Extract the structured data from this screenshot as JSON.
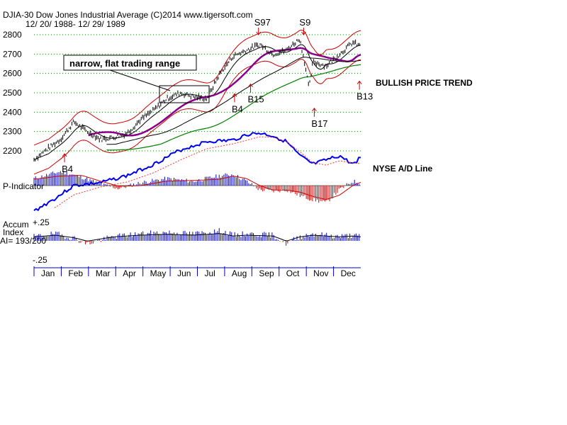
{
  "header": {
    "line1": "DJIA-30  Dow Jones Industrial Average   (C)2014 www.tigersoft.com",
    "line2": "12/ 20/ 1988- 12/ 29/ 1989"
  },
  "annotations": {
    "range_box": "narrow, flat trading range",
    "trend": "BULLISH PRICE TREND",
    "ad_line": "NYSE A/D Line",
    "p_indicator": "P-Indicator",
    "accum_1": "Accum",
    "accum_2": "Index",
    "accum_3": "AI= 193/200",
    "accum_top": "+.25",
    "accum_bottom": "-.25"
  },
  "signals": [
    {
      "label": "B4",
      "kind": "buy",
      "x_month": 1.15,
      "value": 2185
    },
    {
      "label": "B4",
      "kind": "buy",
      "x_month": 7.55,
      "value": 2495
    },
    {
      "label": "B15",
      "kind": "buy",
      "x_month": 8.15,
      "value": 2545
    },
    {
      "label": "S97",
      "kind": "sell",
      "x_month": 8.45,
      "value": 2800
    },
    {
      "label": "S9",
      "kind": "sell",
      "x_month": 10.15,
      "value": 2800
    },
    {
      "label": "B17",
      "kind": "buy",
      "x_month": 10.55,
      "value": 2420
    },
    {
      "label": "B13",
      "kind": "buy",
      "x_month": 12.25,
      "value": 2560
    }
  ],
  "colors": {
    "price_bars": "#000000",
    "band": "#cc0000",
    "ma_purple": "#8b008b",
    "ma_green": "#008000",
    "ad_line": "#0000ee",
    "ad_ma": "#ff3333",
    "hist_pos": "#0000cc",
    "hist_neg": "#cc0000",
    "gridline": "#008800"
  },
  "chart_data": {
    "type": "line",
    "title": "DJIA-30  Dow Jones Industrial Average",
    "ylim": [
      2125,
      2830
    ],
    "y_ticks": [
      2200,
      2300,
      2400,
      2500,
      2600,
      2700,
      2800
    ],
    "x_ticks": [
      "Jan",
      "Feb",
      "Mar",
      "Apr",
      "May",
      "Jun",
      "Jul",
      "Aug",
      "Sep",
      "Oct",
      "Nov",
      "Dec"
    ],
    "x_month": [
      0,
      0.5,
      1,
      1.5,
      2,
      2.5,
      3,
      3.5,
      4,
      4.5,
      5,
      5.5,
      6,
      6.5,
      7,
      7.5,
      8,
      8.5,
      9,
      9.5,
      10,
      10.2,
      10.35,
      10.5,
      11,
      11.5,
      12,
      12.3
    ],
    "series": [
      {
        "name": "DJIA",
        "values": [
          2155,
          2210,
          2260,
          2350,
          2300,
          2260,
          2270,
          2290,
          2360,
          2410,
          2470,
          2500,
          2480,
          2470,
          2600,
          2690,
          2720,
          2750,
          2700,
          2720,
          2780,
          2650,
          2520,
          2660,
          2640,
          2700,
          2760,
          2740
        ]
      }
    ]
  }
}
